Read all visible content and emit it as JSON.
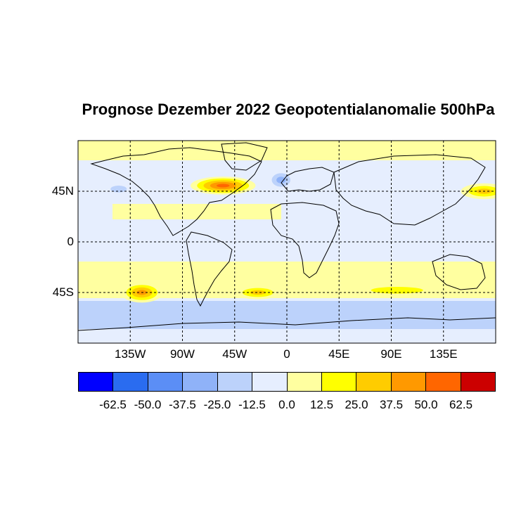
{
  "title": "Prognose Dezember 2022 Geopotentialanomalie 500hPa",
  "map": {
    "lat_labels": [
      {
        "text": "45N",
        "lat": 45
      },
      {
        "text": "0",
        "lat": 0
      },
      {
        "text": "45S",
        "lat": -45
      }
    ],
    "lon_labels": [
      {
        "text": "135W",
        "lon": -135
      },
      {
        "text": "90W",
        "lon": -90
      },
      {
        "text": "45W",
        "lon": -45
      },
      {
        "text": "0",
        "lon": 0
      },
      {
        "text": "45E",
        "lon": 45
      },
      {
        "text": "90E",
        "lon": 90
      },
      {
        "text": "135E",
        "lon": 135
      }
    ],
    "lon_range": [
      -180,
      180
    ],
    "lat_range": [
      -90,
      90
    ],
    "anomaly_regions": [
      {
        "name": "northeast-canada-high",
        "lon": -55,
        "lat": 50,
        "rx": 28,
        "ry": 8,
        "level": 62.5
      },
      {
        "name": "north-atlantic-low",
        "lon": -5,
        "lat": 55,
        "rx": 12,
        "ry": 9,
        "level": -37.5
      },
      {
        "name": "north-pacific-low",
        "lon": -145,
        "lat": 47,
        "rx": 14,
        "ry": 6,
        "level": -25.0
      },
      {
        "name": "west-pacific-high",
        "lon": 170,
        "lat": 45,
        "rx": 20,
        "ry": 7,
        "level": 37.5
      },
      {
        "name": "south-pacific-high",
        "lon": -125,
        "lat": -45,
        "rx": 18,
        "ry": 9,
        "level": 50.0
      },
      {
        "name": "south-atlantic-high",
        "lon": -25,
        "lat": -45,
        "rx": 20,
        "ry": 6,
        "level": 37.5
      },
      {
        "name": "south-indian-high",
        "lon": 95,
        "lat": -43,
        "rx": 45,
        "ry": 6,
        "level": 25.0
      }
    ]
  },
  "colorbar": {
    "colors": [
      "#0000ff",
      "#2a6cf0",
      "#5b8ef6",
      "#8fb2f8",
      "#bcd2fb",
      "#e6eefe",
      "#ffffa0",
      "#ffff00",
      "#ffcc00",
      "#ff9900",
      "#ff6600",
      "#cc0000"
    ],
    "tick_labels": [
      "-62.5",
      "-50.0",
      "-37.5",
      "-25.0",
      "-12.5",
      "0.0",
      "12.5",
      "25.0",
      "37.5",
      "50.0",
      "62.5"
    ]
  }
}
